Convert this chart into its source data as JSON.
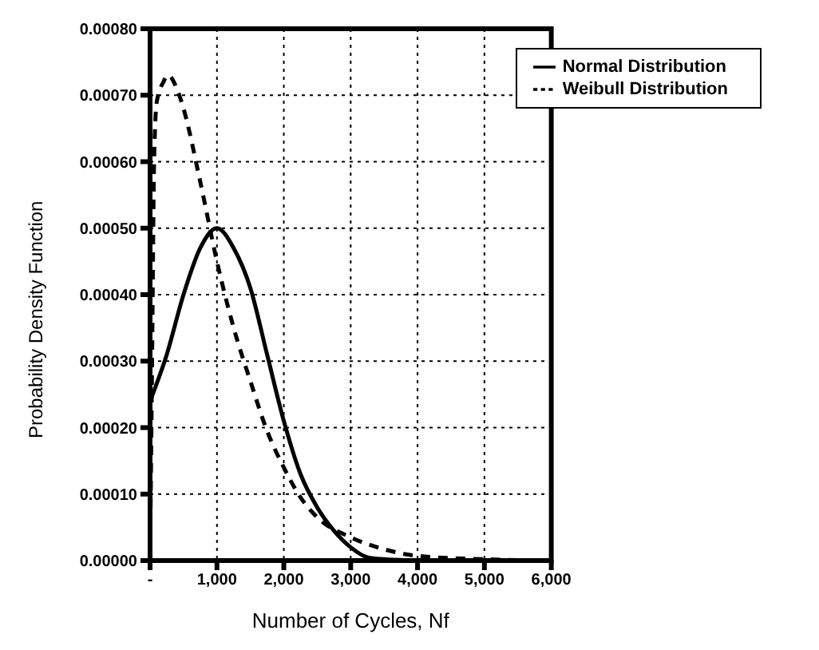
{
  "chart_data": {
    "type": "line",
    "xlabel": "Number of Cycles, Nf",
    "ylabel": "Probability Density Function",
    "xlim": [
      0,
      6000
    ],
    "xticks": [
      {
        "value": 0,
        "label": "-"
      },
      {
        "value": 1000,
        "label": "1,000"
      },
      {
        "value": 2000,
        "label": "2,000"
      },
      {
        "value": 3000,
        "label": "3,000"
      },
      {
        "value": 4000,
        "label": "4,000"
      },
      {
        "value": 5000,
        "label": "5,000"
      },
      {
        "value": 6000,
        "label": "6,000"
      }
    ],
    "ylim": [
      0,
      0.0008
    ],
    "yticks": [
      {
        "value": 0,
        "label": "0.00000"
      },
      {
        "value": 0.0001,
        "label": "0.00010"
      },
      {
        "value": 0.0002,
        "label": "0.00020"
      },
      {
        "value": 0.0003,
        "label": "0.00030"
      },
      {
        "value": 0.0004,
        "label": "0.00040"
      },
      {
        "value": 0.0005,
        "label": "0.00050"
      },
      {
        "value": 0.0006,
        "label": "0.00060"
      },
      {
        "value": 0.0007,
        "label": "0.00070"
      },
      {
        "value": 0.0008,
        "label": "0.00080"
      }
    ],
    "grid": true,
    "legend": "top right",
    "marker": "none",
    "series": [
      {
        "name": "Weibull Distribution",
        "color": "#000000",
        "line_style": "dashed",
        "x": [
          0,
          30,
          60,
          100,
          200,
          270,
          400,
          500,
          750,
          1000,
          1250,
          1500,
          1750,
          2000,
          2250,
          2500,
          3000,
          3500,
          4000,
          5000,
          6000
        ],
        "values": [
          0,
          0.0003,
          0.0006,
          0.00069,
          0.00072,
          0.00073,
          0.00071,
          0.00068,
          0.00057,
          0.00045,
          0.00035,
          0.00027,
          0.000195,
          0.00014,
          9.5e-05,
          6.5e-05,
          3.5e-05,
          1.7e-05,
          7e-06,
          2e-06,
          0
        ]
      },
      {
        "name": "Normal Distribution",
        "color": "#000000",
        "line_style": "solid",
        "x": [
          0,
          250,
          500,
          750,
          1000,
          1250,
          1500,
          1750,
          2000,
          2250,
          2500,
          2750,
          3000,
          3250,
          3500,
          4000
        ],
        "values": [
          0.00024,
          0.00031,
          0.0004,
          0.00047,
          0.0005,
          0.00047,
          0.00041,
          0.00031,
          0.00021,
          0.00013,
          8e-05,
          4.5e-05,
          2e-05,
          5e-06,
          2e-06,
          0
        ]
      }
    ]
  }
}
